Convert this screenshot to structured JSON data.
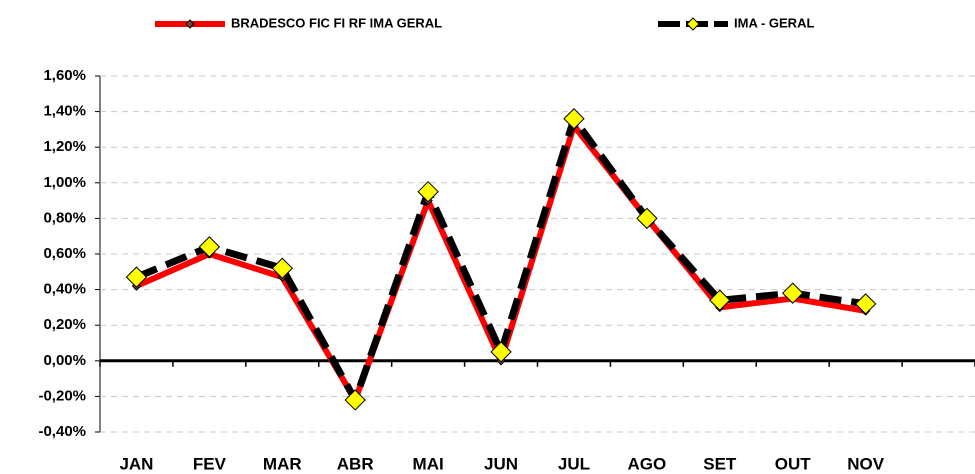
{
  "chart_data": {
    "type": "line",
    "categories": [
      "JAN",
      "FEV",
      "MAR",
      "ABR",
      "MAI",
      "JUN",
      "JUL",
      "AGO",
      "SET",
      "OUT",
      "NOV",
      null
    ],
    "series": [
      {
        "name": "BRADESCO FIC FI RF IMA GERAL",
        "color": "#ff0000",
        "marker_color": "#7f3f3f",
        "dashed": false,
        "values": [
          0.42,
          0.6,
          0.47,
          -0.22,
          0.9,
          0.0,
          1.32,
          0.8,
          0.3,
          0.35,
          0.28,
          null
        ]
      },
      {
        "name": "IMA - GERAL",
        "color": "#000000",
        "marker_color": "#ffff00",
        "dashed": true,
        "values": [
          0.47,
          0.64,
          0.52,
          -0.22,
          0.95,
          0.05,
          1.36,
          0.8,
          0.34,
          0.38,
          0.32,
          null
        ]
      }
    ],
    "ylim": [
      -0.4,
      1.6
    ],
    "yticks": [
      {
        "value": -0.4,
        "label": "-0,40%"
      },
      {
        "value": -0.2,
        "label": "-0,20%"
      },
      {
        "value": 0,
        "label": "0,00%"
      },
      {
        "value": 0.2,
        "label": "0,20%"
      },
      {
        "value": 0.4,
        "label": "0,40%"
      },
      {
        "value": 0.6,
        "label": "0,60%"
      },
      {
        "value": 0.8,
        "label": "0,80%"
      },
      {
        "value": 1.0,
        "label": "1,00%"
      },
      {
        "value": 1.2,
        "label": "1,20%"
      },
      {
        "value": 1.4,
        "label": "1,40%"
      },
      {
        "value": 1.6,
        "label": "1,60%"
      }
    ],
    "grid": true
  }
}
